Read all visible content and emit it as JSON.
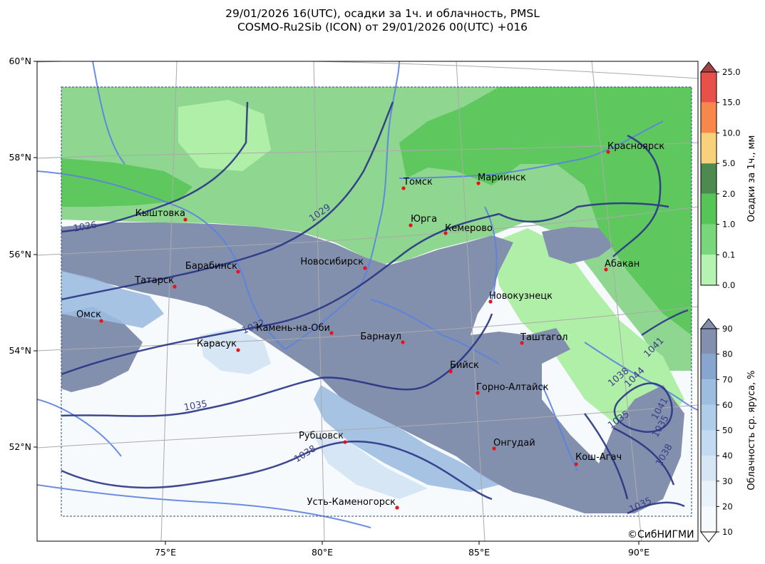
{
  "title": {
    "line1": "29/01/2026 16(UTC), осадки за 1ч. и облачность, PMSL",
    "line2": "COSMO-Ru2Sib (ICON) от 29/01/2026 00(UTC) +016"
  },
  "lat_labels": [
    "60°N",
    "58°N",
    "56°N",
    "54°N",
    "52°N"
  ],
  "lon_labels": [
    "75°E",
    "80°E",
    "85°E",
    "90°E"
  ],
  "cities": [
    {
      "name": "Красноярск"
    },
    {
      "name": "Томск"
    },
    {
      "name": "Мариинск"
    },
    {
      "name": "Кыштовка"
    },
    {
      "name": "Юрга"
    },
    {
      "name": "Кемерово"
    },
    {
      "name": "Барабинск"
    },
    {
      "name": "Новосибирск"
    },
    {
      "name": "Абакан"
    },
    {
      "name": "Татарск"
    },
    {
      "name": "Новокузнецк"
    },
    {
      "name": "Омск"
    },
    {
      "name": "Камень-на-Оби"
    },
    {
      "name": "Барнаул"
    },
    {
      "name": "Таштагол"
    },
    {
      "name": "Карасук"
    },
    {
      "name": "Бийск"
    },
    {
      "name": "Горно-Алтайск"
    },
    {
      "name": "Рубцовск"
    },
    {
      "name": "Онгудай"
    },
    {
      "name": "Кош-Агач"
    },
    {
      "name": "Усть-Каменогорск"
    }
  ],
  "isobar_labels": [
    "1026",
    "1029",
    "1032",
    "1035",
    "1038",
    "1035",
    "1038",
    "1041",
    "1044",
    "1041",
    "1038",
    "1035",
    "1035"
  ],
  "precip_colorbar": {
    "title": "Осадки за 1ч., мм",
    "ticks": [
      "25.0",
      "15.0",
      "10.0",
      "5.0",
      "2.0",
      "1.0",
      "0.1",
      "0.0"
    ],
    "colors": [
      "#e8504a",
      "#f7884a",
      "#f8d27a",
      "#4e8a50",
      "#56c456",
      "#7ad67a",
      "#b6f2b0"
    ],
    "over_color": "#a04545"
  },
  "cloud_colorbar": {
    "title": "Облачность ср. яруса, %",
    "ticks": [
      "90",
      "80",
      "70",
      "60",
      "50",
      "40",
      "30",
      "20",
      "10"
    ],
    "colors": [
      "#8390ad",
      "#87a6cf",
      "#9cbde0",
      "#afcde8",
      "#c3dbf0",
      "#d7e6f4",
      "#e9f1f9",
      "#f7fafd"
    ],
    "over_color": "#8390ad"
  },
  "copyright": "©СибНИГМИ",
  "colors": {
    "green_light": "#8fd690",
    "green_mid": "#5ec85e",
    "green_pale": "#b0efa8",
    "cloud_dark": "#8390ad",
    "cloud_mid": "#9cbde0",
    "cloud_light": "#d7e6f4",
    "river": "#5b82e0",
    "isobar": "#2a3585"
  }
}
